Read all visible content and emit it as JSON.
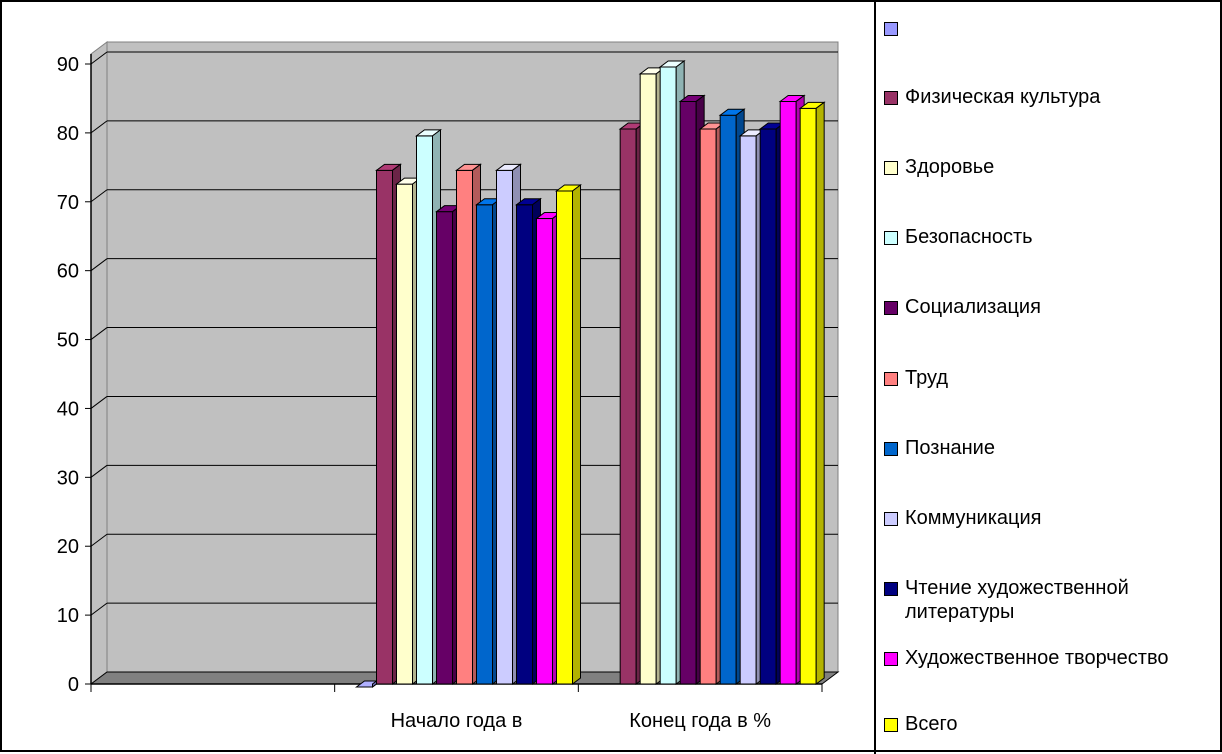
{
  "chart_data": {
    "type": "bar",
    "categories": [
      "",
      "Начало года в",
      "Конец года в %"
    ],
    "ylim": [
      0,
      90
    ],
    "yticks": [
      0,
      10,
      20,
      30,
      40,
      50,
      60,
      70,
      80,
      90
    ],
    "grid": true,
    "legend_position": "right",
    "series": [
      {
        "name": "",
        "color": "#9999ff",
        "values": [
          null,
          0,
          null
        ]
      },
      {
        "name": "Физическая культура",
        "color": "#993366",
        "values": [
          null,
          75,
          81
        ]
      },
      {
        "name": "Здоровье",
        "color": "#ffffcc",
        "values": [
          null,
          73,
          89
        ]
      },
      {
        "name": "Безопасность",
        "color": "#ccffff",
        "values": [
          null,
          80,
          90
        ]
      },
      {
        "name": "Социализация",
        "color": "#660066",
        "values": [
          null,
          69,
          85
        ]
      },
      {
        "name": "Труд",
        "color": "#ff8080",
        "values": [
          null,
          75,
          81
        ]
      },
      {
        "name": "Познание",
        "color": "#0066cc",
        "values": [
          null,
          70,
          83
        ]
      },
      {
        "name": "Коммуникация",
        "color": "#ccccff",
        "values": [
          null,
          75,
          80
        ]
      },
      {
        "name": "Чтение художественной литературы",
        "color": "#000080",
        "values": [
          null,
          70,
          81
        ]
      },
      {
        "name": "Художественное творчество",
        "color": "#ff00ff",
        "values": [
          null,
          68,
          85
        ]
      },
      {
        "name": "Всего",
        "color": "#ffff00",
        "values": [
          null,
          72,
          84
        ]
      }
    ]
  },
  "legend": [
    {
      "label": ""
    },
    {
      "label": "Физическая культура"
    },
    {
      "label": "Здоровье"
    },
    {
      "label": "Безопасность"
    },
    {
      "label": "Социализация"
    },
    {
      "label": "Труд"
    },
    {
      "label": "Познание"
    },
    {
      "label": "Коммуникация"
    },
    {
      "label": "Чтение художественной литературы"
    },
    {
      "label": "Художественное творчество"
    },
    {
      "label": "Всего"
    }
  ],
  "colors": {
    "plot_wall": "#c0c0c0",
    "floor": "#808080",
    "gridline": "#000000"
  }
}
